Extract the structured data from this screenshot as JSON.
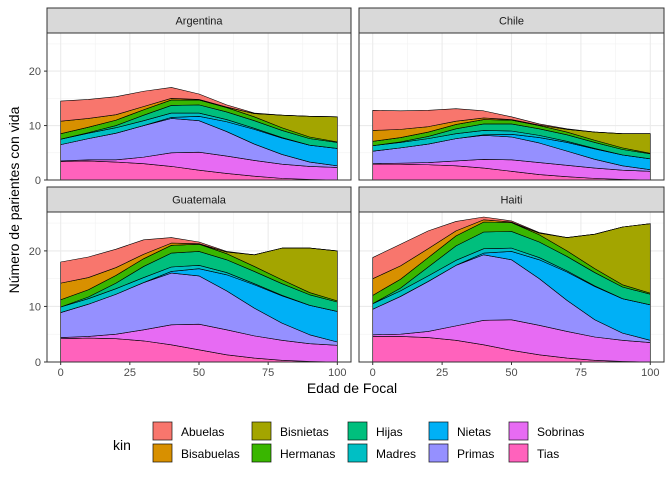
{
  "chart_data": {
    "type": "area",
    "stacking": "stacked",
    "xlabel": "Edad de Focal",
    "ylabel": "Número de parientes con vida",
    "xlim": [
      0,
      100
    ],
    "ylim": [
      0,
      27
    ],
    "xticks": [
      0,
      25,
      50,
      75,
      100
    ],
    "yticks": [
      0,
      10,
      20
    ],
    "grid": true,
    "legend": {
      "title": "kin",
      "position": "bottom",
      "entries": [
        {
          "name": "Abuelas",
          "color": "#F8766D"
        },
        {
          "name": "Bisabuelas",
          "color": "#D89000"
        },
        {
          "name": "Bisnietas",
          "color": "#A3A500"
        },
        {
          "name": "Hermanas",
          "color": "#39B600"
        },
        {
          "name": "Hijas",
          "color": "#00BF7D"
        },
        {
          "name": "Madres",
          "color": "#00BFC4"
        },
        {
          "name": "Nietas",
          "color": "#00B0F6"
        },
        {
          "name": "Primas",
          "color": "#9590FF"
        },
        {
          "name": "Sobrinas",
          "color": "#E76BF3"
        },
        {
          "name": "Tias",
          "color": "#FF62BC"
        }
      ]
    },
    "x": [
      0,
      10,
      20,
      30,
      40,
      50,
      60,
      70,
      80,
      90,
      100
    ],
    "stack_order_bottom_to_top": [
      "Tias",
      "Sobrinas",
      "Primas",
      "Nietas",
      "Madres",
      "Hijas",
      "Hermanas",
      "Bisnietas",
      "Bisabuelas",
      "Abuelas"
    ],
    "panels": [
      {
        "title": "Argentina",
        "series": [
          {
            "name": "Tias",
            "values": [
              3.4,
              3.5,
              3.3,
              3.0,
              2.5,
              1.8,
              1.2,
              0.7,
              0.3,
              0.1,
              0.0
            ]
          },
          {
            "name": "Sobrinas",
            "values": [
              0.1,
              0.2,
              0.4,
              1.2,
              2.5,
              3.3,
              3.2,
              2.9,
              2.6,
              2.4,
              2.3
            ]
          },
          {
            "name": "Primas",
            "values": [
              3.0,
              3.9,
              4.9,
              5.8,
              6.3,
              5.8,
              4.5,
              3.0,
              1.8,
              0.8,
              0.3
            ]
          },
          {
            "name": "Nietas",
            "values": [
              0.0,
              0.0,
              0.0,
              0.0,
              0.2,
              0.8,
              1.8,
              2.7,
              3.0,
              3.1,
              3.2
            ]
          },
          {
            "name": "Madres",
            "values": [
              1.0,
              1.0,
              1.0,
              0.9,
              0.8,
              0.6,
              0.4,
              0.2,
              0.1,
              0.0,
              0.0
            ]
          },
          {
            "name": "Hijas",
            "values": [
              0.0,
              0.1,
              0.4,
              1.0,
              1.4,
              1.5,
              1.4,
              1.4,
              1.3,
              1.2,
              1.1
            ]
          },
          {
            "name": "Hermanas",
            "values": [
              1.0,
              1.0,
              1.0,
              1.0,
              1.0,
              0.9,
              0.8,
              0.7,
              0.5,
              0.3,
              0.1
            ]
          },
          {
            "name": "Bisnietas",
            "values": [
              0.0,
              0.0,
              0.0,
              0.0,
              0.0,
              0.0,
              0.1,
              0.6,
              2.3,
              3.8,
              4.6
            ]
          },
          {
            "name": "Bisabuelas",
            "values": [
              2.3,
              1.6,
              1.0,
              0.6,
              0.3,
              0.1,
              0.0,
              0.0,
              0.0,
              0.0,
              0.0
            ]
          },
          {
            "name": "Abuelas",
            "values": [
              3.7,
              3.5,
              3.3,
              2.8,
              2.0,
              1.0,
              0.4,
              0.1,
              0.0,
              0.0,
              0.0
            ]
          }
        ]
      },
      {
        "title": "Chile",
        "series": [
          {
            "name": "Tias",
            "values": [
              2.9,
              2.9,
              2.8,
              2.6,
              2.2,
              1.6,
              1.0,
              0.6,
              0.3,
              0.1,
              0.0
            ]
          },
          {
            "name": "Sobrinas",
            "values": [
              0.1,
              0.2,
              0.4,
              0.9,
              1.6,
              2.1,
              2.2,
              2.1,
              1.9,
              1.7,
              1.6
            ]
          },
          {
            "name": "Primas",
            "values": [
              2.3,
              2.8,
              3.4,
              4.1,
              4.4,
              4.2,
              3.6,
              2.6,
              1.6,
              0.8,
              0.3
            ]
          },
          {
            "name": "Nietas",
            "values": [
              0.0,
              0.0,
              0.0,
              0.0,
              0.1,
              0.5,
              1.0,
              1.6,
              1.9,
              2.0,
              2.0
            ]
          },
          {
            "name": "Madres",
            "values": [
              1.0,
              1.0,
              1.0,
              0.9,
              0.8,
              0.6,
              0.4,
              0.2,
              0.1,
              0.0,
              0.0
            ]
          },
          {
            "name": "Hijas",
            "values": [
              0.0,
              0.1,
              0.4,
              0.9,
              1.2,
              1.3,
              1.2,
              1.2,
              1.1,
              1.0,
              0.9
            ]
          },
          {
            "name": "Hermanas",
            "values": [
              0.8,
              0.8,
              0.8,
              0.8,
              0.8,
              0.7,
              0.6,
              0.5,
              0.4,
              0.3,
              0.1
            ]
          },
          {
            "name": "Bisnietas",
            "values": [
              0.0,
              0.0,
              0.0,
              0.0,
              0.0,
              0.0,
              0.1,
              0.5,
              1.5,
              2.6,
              3.6
            ]
          },
          {
            "name": "Bisabuelas",
            "values": [
              2.0,
              1.5,
              1.0,
              0.6,
              0.3,
              0.1,
              0.0,
              0.0,
              0.0,
              0.0,
              0.0
            ]
          },
          {
            "name": "Abuelas",
            "values": [
              3.7,
              3.4,
              3.0,
              2.3,
              1.3,
              0.5,
              0.2,
              0.1,
              0.0,
              0.0,
              0.0
            ]
          }
        ]
      },
      {
        "title": "Guatemala",
        "series": [
          {
            "name": "Tias",
            "values": [
              4.2,
              4.3,
              4.2,
              3.8,
              3.1,
              2.2,
              1.3,
              0.7,
              0.3,
              0.1,
              0.0
            ]
          },
          {
            "name": "Sobrinas",
            "values": [
              0.2,
              0.3,
              0.8,
              2.0,
              3.6,
              4.6,
              4.5,
              4.0,
              3.6,
              3.2,
              3.0
            ]
          },
          {
            "name": "Primas",
            "values": [
              4.5,
              5.8,
              7.2,
              8.5,
              9.3,
              8.7,
              7.0,
              5.0,
              3.1,
              1.6,
              0.6
            ]
          },
          {
            "name": "Nietas",
            "values": [
              0.0,
              0.0,
              0.0,
              0.0,
              0.3,
              1.3,
              2.9,
              4.2,
              4.9,
              5.3,
              5.5
            ]
          },
          {
            "name": "Madres",
            "values": [
              1.0,
              1.0,
              1.0,
              0.9,
              0.8,
              0.6,
              0.4,
              0.2,
              0.1,
              0.0,
              0.0
            ]
          },
          {
            "name": "Hijas",
            "values": [
              0.0,
              0.3,
              1.0,
              2.0,
              2.5,
              2.5,
              2.3,
              2.2,
              2.1,
              1.9,
              1.7
            ]
          },
          {
            "name": "Hermanas",
            "values": [
              1.3,
              1.3,
              1.4,
              1.4,
              1.4,
              1.3,
              1.1,
              0.9,
              0.7,
              0.4,
              0.2
            ]
          },
          {
            "name": "Bisnietas",
            "values": [
              0.0,
              0.0,
              0.0,
              0.0,
              0.0,
              0.0,
              0.3,
              2.1,
              5.7,
              8.0,
              9.0
            ]
          },
          {
            "name": "Bisabuelas",
            "values": [
              3.0,
              2.2,
              1.4,
              0.8,
              0.4,
              0.1,
              0.0,
              0.0,
              0.0,
              0.0,
              0.0
            ]
          },
          {
            "name": "Abuelas",
            "values": [
              3.8,
              3.7,
              3.3,
              2.6,
              1.0,
              0.3,
              0.1,
              0.0,
              0.0,
              0.0,
              0.0
            ]
          }
        ]
      },
      {
        "title": "Haiti",
        "series": [
          {
            "name": "Tias",
            "values": [
              4.6,
              4.6,
              4.4,
              3.9,
              3.1,
              2.1,
              1.3,
              0.7,
              0.3,
              0.1,
              0.0
            ]
          },
          {
            "name": "Sobrinas",
            "values": [
              0.3,
              0.4,
              1.1,
              2.6,
              4.4,
              5.5,
              5.3,
              4.8,
              4.2,
              3.8,
              3.5
            ]
          },
          {
            "name": "Primas",
            "values": [
              4.6,
              6.8,
              9.0,
              10.9,
              11.8,
              10.8,
              8.4,
              5.6,
              3.1,
              1.3,
              0.4
            ]
          },
          {
            "name": "Nietas",
            "values": [
              0.0,
              0.0,
              0.0,
              0.0,
              0.3,
              1.5,
              3.4,
              5.1,
              6.0,
              6.2,
              6.4
            ]
          },
          {
            "name": "Madres",
            "values": [
              1.0,
              1.0,
              1.0,
              0.9,
              0.8,
              0.6,
              0.4,
              0.2,
              0.1,
              0.0,
              0.0
            ]
          },
          {
            "name": "Hijas",
            "values": [
              0.0,
              0.5,
              1.6,
              2.6,
              3.0,
              3.0,
              2.8,
              2.6,
              2.4,
              2.1,
              1.9
            ]
          },
          {
            "name": "Hermanas",
            "values": [
              1.5,
              1.6,
              1.7,
              1.8,
              1.8,
              1.6,
              1.3,
              1.0,
              0.7,
              0.4,
              0.2
            ]
          },
          {
            "name": "Bisnietas",
            "values": [
              0.0,
              0.0,
              0.0,
              0.0,
              0.0,
              0.0,
              0.3,
              2.4,
              6.2,
              10.4,
              12.5
            ]
          },
          {
            "name": "Bisabuelas",
            "values": [
              3.0,
              2.4,
              1.6,
              0.9,
              0.4,
              0.1,
              0.0,
              0.0,
              0.0,
              0.0,
              0.0
            ]
          },
          {
            "name": "Abuelas",
            "values": [
              3.8,
              3.9,
              3.2,
              1.7,
              0.5,
              0.2,
              0.1,
              0.0,
              0.0,
              0.0,
              0.0
            ]
          }
        ]
      }
    ]
  }
}
